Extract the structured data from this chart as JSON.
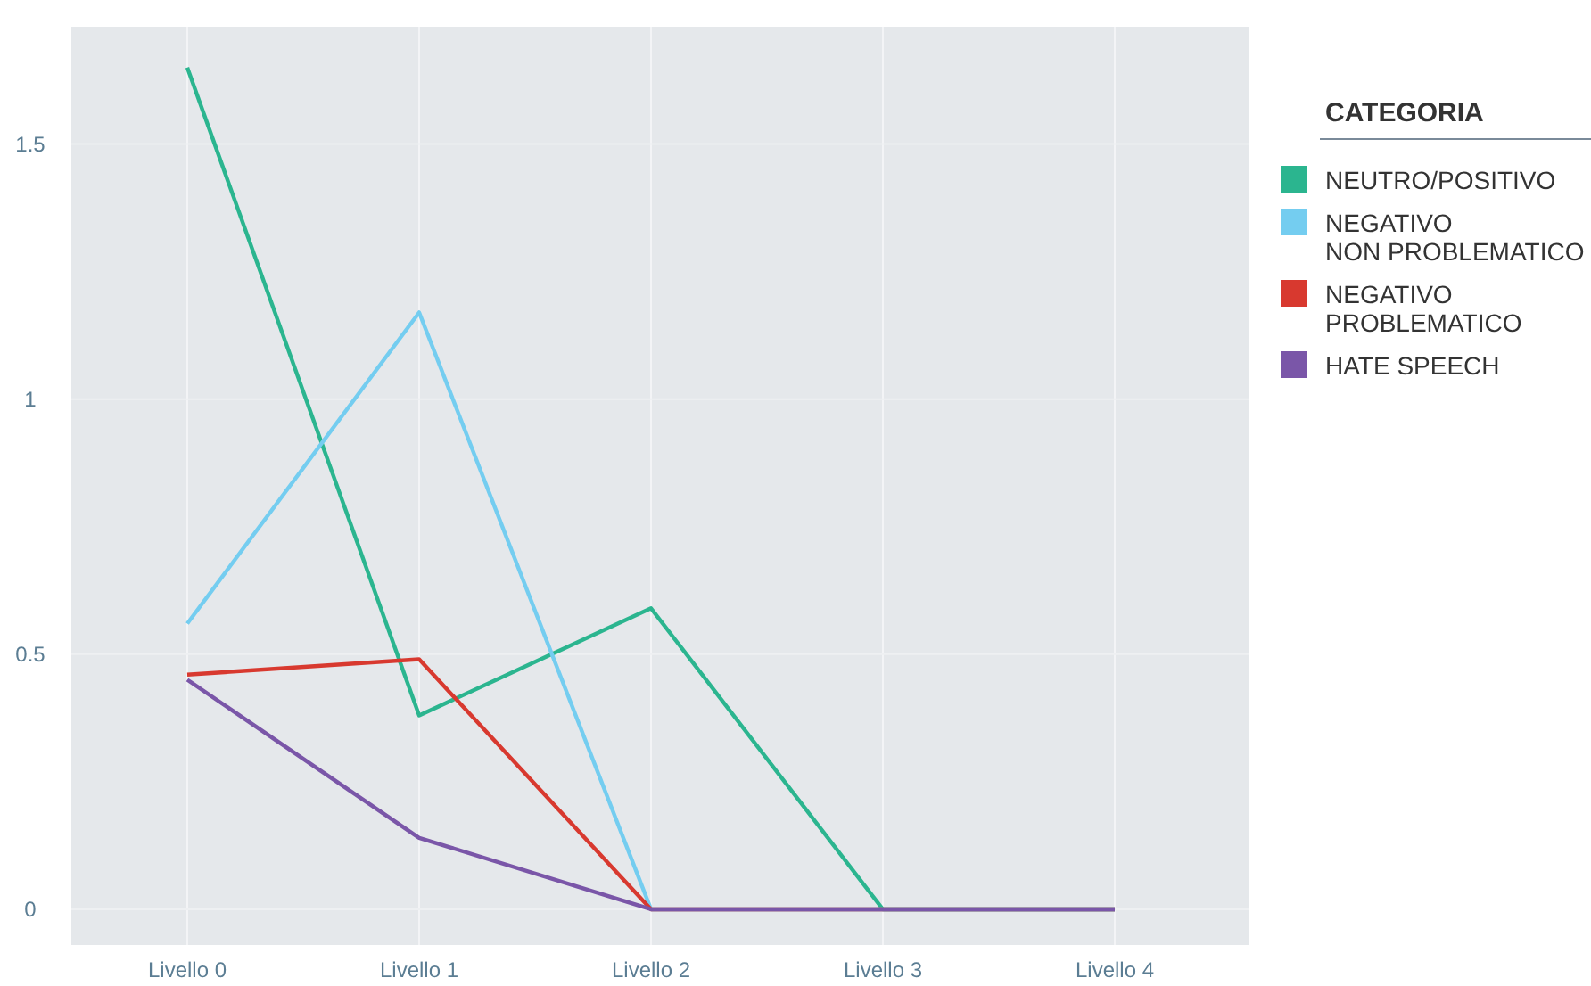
{
  "chart_data": {
    "type": "line",
    "categories": [
      "Livello 0",
      "Livello 1",
      "Livello 2",
      "Livello 3",
      "Livello 4"
    ],
    "legend_title": "CATEGORIA",
    "legend": "top right",
    "grid": true,
    "ylim": [
      -0.07,
      1.73
    ],
    "yticks": [
      0,
      0.5,
      1,
      1.5
    ],
    "series": [
      {
        "name": "NEUTRO/POSITIVO",
        "color": "#2bb58f",
        "values": [
          1.65,
          0.38,
          0.59,
          0,
          0
        ]
      },
      {
        "name": "NEGATIVO\nNON PROBLEMATICO",
        "color": "#74cdf0",
        "values": [
          0.56,
          1.17,
          0,
          0,
          0
        ]
      },
      {
        "name": "NEGATIVO\nPROBLEMATICO",
        "color": "#d8392f",
        "values": [
          0.46,
          0.49,
          0,
          0,
          0
        ]
      },
      {
        "name": "HATE SPEECH",
        "color": "#7a56a8",
        "values": [
          0.45,
          0.14,
          0,
          0,
          0
        ]
      }
    ]
  }
}
